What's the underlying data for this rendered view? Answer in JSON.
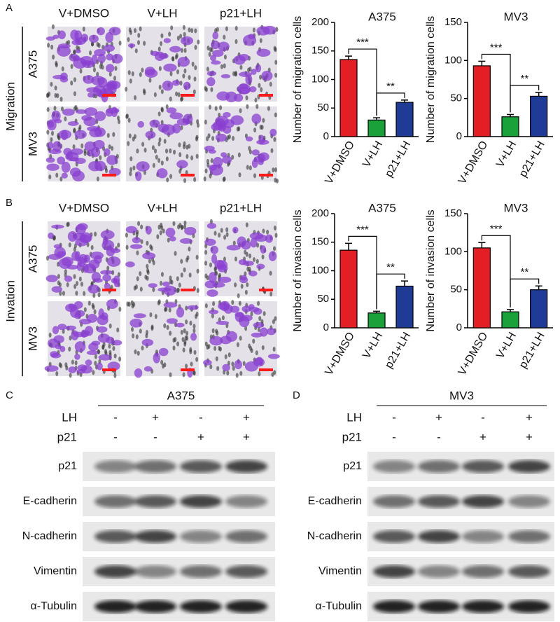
{
  "chart_data": [
    {
      "type": "bar",
      "title": "A375",
      "ylabel": "Number of migration cells",
      "categories": [
        "V+DMSO",
        "V+LH",
        "p21+LH"
      ],
      "values": [
        135,
        29,
        60
      ],
      "errors": [
        6,
        4,
        4
      ],
      "colors": [
        "#e31e24",
        "#1ba13a",
        "#1f3b95"
      ],
      "ylim": [
        0,
        200
      ],
      "yticks": [
        0,
        50,
        100,
        150,
        200
      ],
      "annotations": [
        "***",
        "**"
      ]
    },
    {
      "type": "bar",
      "title": "MV3",
      "ylabel": "Number of migration cells",
      "categories": [
        "V+DMSO",
        "V+LH",
        "p21+LH"
      ],
      "values": [
        93,
        26,
        53
      ],
      "errors": [
        6,
        3,
        5
      ],
      "colors": [
        "#e31e24",
        "#1ba13a",
        "#1f3b95"
      ],
      "ylim": [
        0,
        150
      ],
      "yticks": [
        0,
        50,
        100,
        150
      ],
      "annotations": [
        "***",
        "**"
      ]
    },
    {
      "type": "bar",
      "title": "A375",
      "ylabel": "Number of invasion cells",
      "categories": [
        "V+DMSO",
        "V+LH",
        "p21+LH"
      ],
      "values": [
        136,
        26,
        73
      ],
      "errors": [
        12,
        3,
        9
      ],
      "colors": [
        "#e31e24",
        "#1ba13a",
        "#1f3b95"
      ],
      "ylim": [
        0,
        200
      ],
      "yticks": [
        0,
        50,
        100,
        150,
        200
      ],
      "annotations": [
        "***",
        "**"
      ]
    },
    {
      "type": "bar",
      "title": "MV3",
      "ylabel": "Number of invasion cells",
      "categories": [
        "V+DMSO",
        "V+LH",
        "p21+LH"
      ],
      "values": [
        105,
        21,
        50
      ],
      "errors": [
        7,
        3,
        5
      ],
      "colors": [
        "#e31e24",
        "#1ba13a",
        "#1f3b95"
      ],
      "ylim": [
        0,
        150
      ],
      "yticks": [
        0,
        50,
        100,
        150
      ],
      "annotations": [
        "***",
        "**"
      ]
    }
  ],
  "panel_a": {
    "label": "A",
    "side_label": "Migration",
    "columns": [
      "V+DMSO",
      "V+LH",
      "p21+LH"
    ],
    "rows": [
      "A375",
      "MV3"
    ]
  },
  "panel_b": {
    "label": "B",
    "side_label": "Invation",
    "columns": [
      "V+DMSO",
      "V+LH",
      "p21+LH"
    ],
    "rows": [
      "A375",
      "MV3"
    ]
  },
  "panel_c": {
    "label": "C",
    "title": "A375",
    "conditions": [
      {
        "name": "LH",
        "signs": [
          "-",
          "+",
          "-",
          "+"
        ]
      },
      {
        "name": "p21",
        "signs": [
          "-",
          "-",
          "+",
          "+"
        ]
      }
    ],
    "bands": [
      "p21",
      "E-cadherin",
      "N-cadherin",
      "Vimentin",
      "α-Tubulin"
    ]
  },
  "panel_d": {
    "label": "D",
    "title": "MV3",
    "conditions": [
      {
        "name": "LH",
        "signs": [
          "-",
          "+",
          "-",
          "+"
        ]
      },
      {
        "name": "p21",
        "signs": [
          "-",
          "-",
          "+",
          "+"
        ]
      }
    ],
    "bands": [
      "p21",
      "E-cadherin",
      "N-cadherin",
      "Vimentin",
      "α-Tubulin"
    ]
  }
}
